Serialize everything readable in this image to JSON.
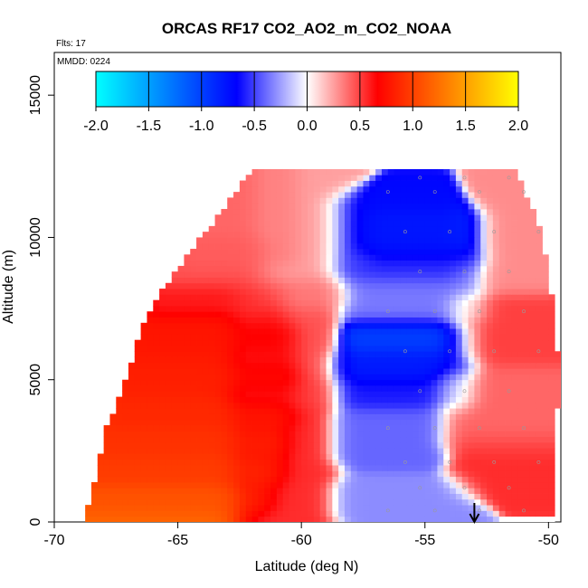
{
  "chart_data": {
    "type": "heatmap",
    "title": "ORCAS RF17 CO2_AO2_m_CO2_NOAA",
    "annotations": {
      "flights": "Flts: 17",
      "date": "MMDD: 0224"
    },
    "xlabel": "Latitude (deg N)",
    "ylabel": "Altitude (m)",
    "xlim": [
      -70,
      -49.5
    ],
    "ylim": [
      0,
      16500
    ],
    "xticks": [
      -70,
      -65,
      -60,
      -55,
      -50
    ],
    "xtick_labels": [
      "-70",
      "-65",
      "-60",
      "-55",
      "-50"
    ],
    "yticks": [
      0,
      5000,
      10000,
      15000
    ],
    "ytick_labels": [
      "0",
      "5000",
      "10000",
      "15000"
    ],
    "colorbar": {
      "range": [
        -2.0,
        2.0
      ],
      "ticks": [
        -2.0,
        -1.5,
        -1.0,
        -0.5,
        0.0,
        0.5,
        1.0,
        1.5,
        2.0
      ],
      "tick_labels": [
        "-2.0",
        "-1.5",
        "-1.0",
        "-0.5",
        "0.0",
        "0.5",
        "1.0",
        "1.5",
        "2.0"
      ],
      "colors": [
        "#00ffff",
        "#0080ff",
        "#0000ff",
        "#ffffff",
        "#ff0000",
        "#ff8000",
        "#ffff00"
      ]
    },
    "coverage": {
      "lat_left_boundary": [
        [
          0,
          -68.8
        ],
        [
          600,
          -68.5
        ],
        [
          1500,
          -68.2
        ],
        [
          2500,
          -68.0
        ],
        [
          3300,
          -67.8
        ],
        [
          3800,
          -67.5
        ],
        [
          4500,
          -67.2
        ],
        [
          5500,
          -66.8
        ],
        [
          6500,
          -66.5
        ],
        [
          7500,
          -66.0
        ],
        [
          8200,
          -65.5
        ],
        [
          9000,
          -64.8
        ],
        [
          10000,
          -64.0
        ],
        [
          11000,
          -63.0
        ],
        [
          12300,
          -62.0
        ]
      ],
      "lat_right_boundary": [
        [
          0,
          -49.8
        ],
        [
          3000,
          -49.8
        ],
        [
          5000,
          -49.7
        ],
        [
          7000,
          -49.8
        ],
        [
          9000,
          -50.2
        ],
        [
          10000,
          -50.3
        ],
        [
          11000,
          -50.7
        ],
        [
          12000,
          -51.3
        ]
      ],
      "alt_top": 12300
    },
    "regions": [
      {
        "lat": [
          -68.8,
          -63.0
        ],
        "alt": [
          0,
          800
        ],
        "value": 1.2
      },
      {
        "lat": [
          -68.5,
          -62.0
        ],
        "alt": [
          800,
          1800
        ],
        "value": 1.0
      },
      {
        "lat": [
          -68.2,
          -61.5
        ],
        "alt": [
          1800,
          2800
        ],
        "value": 0.95
      },
      {
        "lat": [
          -68.0,
          -61.5
        ],
        "alt": [
          2800,
          3800
        ],
        "value": 0.9
      },
      {
        "lat": [
          -67.0,
          -61.0
        ],
        "alt": [
          3800,
          5000
        ],
        "value": 0.85
      },
      {
        "lat": [
          -66.5,
          -61.0
        ],
        "alt": [
          5000,
          6500
        ],
        "value": 0.8
      },
      {
        "lat": [
          -66.0,
          -61.5
        ],
        "alt": [
          6500,
          7800
        ],
        "value": 0.75
      },
      {
        "lat": [
          -65.5,
          -62.0
        ],
        "alt": [
          7800,
          9500
        ],
        "value": 0.45
      },
      {
        "lat": [
          -64.0,
          -61.0
        ],
        "alt": [
          9500,
          12300
        ],
        "value": 0.4
      },
      {
        "lat": [
          -62.0,
          -59.5
        ],
        "alt": [
          0,
          4500
        ],
        "value": 0.55
      },
      {
        "lat": [
          -62.0,
          -59.5
        ],
        "alt": [
          4500,
          8000
        ],
        "value": 0.45
      },
      {
        "lat": [
          -61.0,
          -59.0
        ],
        "alt": [
          8000,
          12300
        ],
        "value": 0.25
      },
      {
        "lat": [
          -58.0,
          -54.5
        ],
        "alt": [
          9000,
          11000
        ],
        "value": -0.7
      },
      {
        "lat": [
          -56.5,
          -53.5
        ],
        "alt": [
          9500,
          10500
        ],
        "value": -0.85
      },
      {
        "lat": [
          -57.5,
          -53.5
        ],
        "alt": [
          7500,
          9000
        ],
        "value": -0.35
      },
      {
        "lat": [
          -57.5,
          -54.0
        ],
        "alt": [
          5500,
          6500
        ],
        "value": -1.0
      },
      {
        "lat": [
          -58.0,
          -54.0
        ],
        "alt": [
          4500,
          5500
        ],
        "value": -0.6
      },
      {
        "lat": [
          -58.0,
          -55.0
        ],
        "alt": [
          2500,
          3500
        ],
        "value": -0.4
      },
      {
        "lat": [
          -58.0,
          -54.0
        ],
        "alt": [
          500,
          1000
        ],
        "value": -0.3
      },
      {
        "lat": [
          -53.0,
          -50.0
        ],
        "alt": [
          6000,
          7500
        ],
        "value": 0.5
      },
      {
        "lat": [
          -53.5,
          -50.0
        ],
        "alt": [
          3000,
          5000
        ],
        "value": 0.4
      },
      {
        "lat": [
          -53.0,
          -50.0
        ],
        "alt": [
          1500,
          2500
        ],
        "value": 0.55
      },
      {
        "lat": [
          -52.0,
          -50.3
        ],
        "alt": [
          8500,
          11500
        ],
        "value": 0.3
      }
    ],
    "arrow": {
      "lat": -53.0,
      "direction": "down"
    },
    "grid": false,
    "legend": "colorbar at top"
  }
}
